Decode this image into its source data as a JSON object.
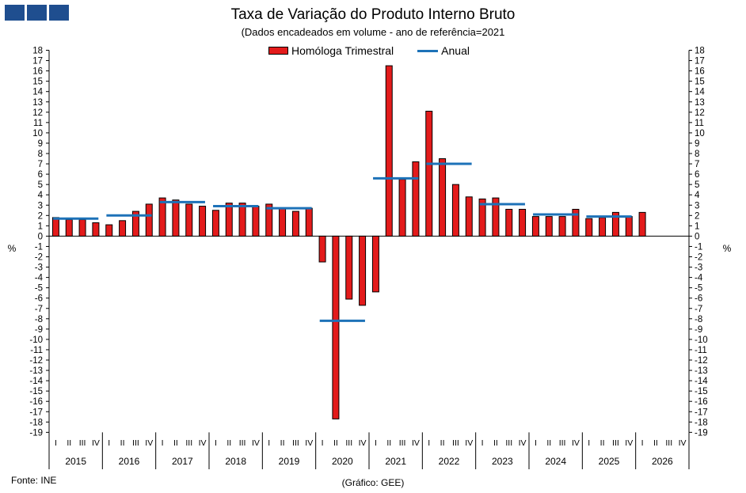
{
  "header": {
    "logo_icon": "ine-logo-blocks",
    "title": "Taxa de Variação do Produto Interno Bruto",
    "subtitle": "(Dados encadeados em volume - ano de referência=2021"
  },
  "footer": {
    "source": "Fonte: INE",
    "credit": "(Gráfico: GEE)"
  },
  "chart_data": {
    "type": "bar",
    "title": "Taxa de Variação do Produto Interno Bruto",
    "subtitle": "(Dados encadeados em volume - ano de referência=2021",
    "ylabel": "%",
    "ylabel_right": "%",
    "ylim": [
      -19,
      18
    ],
    "y_ticks": [
      18,
      17,
      16,
      15,
      14,
      13,
      12,
      11,
      10,
      9,
      8,
      7,
      6,
      5,
      4,
      3,
      2,
      1,
      0,
      -1,
      -2,
      -3,
      -4,
      -5,
      -6,
      -7,
      -8,
      -9,
      -10,
      -11,
      -12,
      -13,
      -14,
      -15,
      -16,
      -17,
      -18,
      -19
    ],
    "grid": false,
    "legend_position": "top",
    "colors": {
      "bar": "#e31b1b",
      "bar_edge": "#000000",
      "line": "#1d72b8"
    },
    "quarter_labels": [
      "I",
      "II",
      "III",
      "IV"
    ],
    "years": [
      "2015",
      "2016",
      "2017",
      "2018",
      "2019",
      "2020",
      "2021",
      "2022",
      "2023",
      "2024",
      "2025",
      "2026"
    ],
    "series": [
      {
        "name": "Homóloga Trimestral",
        "kind": "bar",
        "values": [
          1.8,
          1.6,
          1.6,
          1.3,
          1.1,
          1.5,
          2.4,
          3.1,
          3.7,
          3.5,
          3.1,
          2.9,
          2.5,
          3.2,
          3.2,
          2.9,
          3.1,
          2.7,
          2.4,
          2.7,
          -2.5,
          -17.7,
          -6.1,
          -6.7,
          -5.4,
          16.5,
          5.5,
          7.2,
          12.1,
          7.5,
          5.0,
          3.8,
          3.6,
          3.7,
          2.6,
          2.6,
          1.9,
          1.9,
          1.9,
          2.6,
          1.7,
          1.8,
          2.3,
          1.9,
          2.3
        ]
      },
      {
        "name": "Anual",
        "kind": "step",
        "values": [
          1.7,
          2.0,
          3.3,
          2.9,
          2.7,
          -8.2,
          5.6,
          7.0,
          3.1,
          2.1,
          1.9
        ]
      }
    ]
  }
}
